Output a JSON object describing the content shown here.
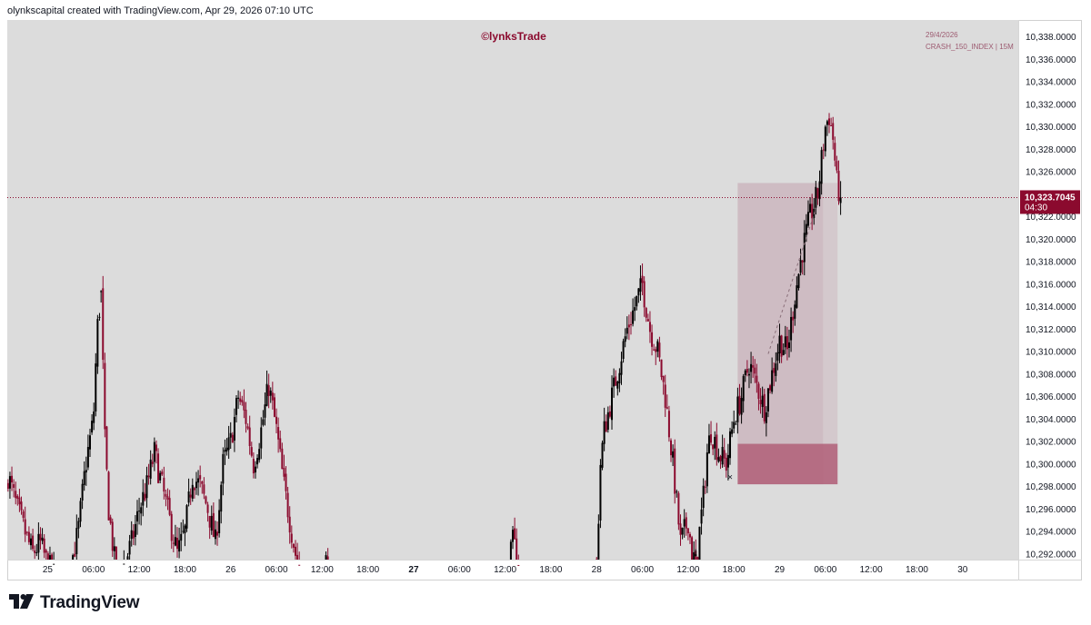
{
  "header": {
    "text": "olynkscapital created with TradingView.com, Apr 29, 2026 07:10 UTC"
  },
  "watermark": {
    "brand": "©lynksTrade",
    "date": "29/4/2026",
    "symbol": "CRASH_150_INDEX | 15M"
  },
  "price_label": {
    "price": "10,323.7045",
    "countdown": "04:30"
  },
  "footer": {
    "brand": "TradingView",
    "logo_icon": "tradingview-logo-icon"
  },
  "colors": {
    "background": "#dcdcdc",
    "bull_candle": "#000000",
    "bear_candle": "#8b0a2e",
    "accent": "#8b0a2e",
    "zone_fill": "#b3687f",
    "range_fill": "#c9b2bb"
  },
  "chart_data": {
    "type": "candlestick",
    "symbol": "CRASH_150_INDEX",
    "timeframe": "15M",
    "ylim": [
      10291.5,
      10339.5
    ],
    "yticks": [
      "10,292.0000",
      "10,294.0000",
      "10,296.0000",
      "10,298.0000",
      "10,300.0000",
      "10,302.0000",
      "10,304.0000",
      "10,306.0000",
      "10,308.0000",
      "10,310.0000",
      "10,312.0000",
      "10,314.0000",
      "10,316.0000",
      "10,318.0000",
      "10,320.0000",
      "10,322.0000",
      "10,324.0000",
      "10,326.0000",
      "10,328.0000",
      "10,330.0000",
      "10,332.0000",
      "10,334.0000",
      "10,336.0000",
      "10,338.0000"
    ],
    "xticks": [
      {
        "label": "25",
        "t": 0,
        "bold": false
      },
      {
        "label": "06:00",
        "t": 6,
        "bold": false
      },
      {
        "label": "12:00",
        "t": 12,
        "bold": false
      },
      {
        "label": "18:00",
        "t": 18,
        "bold": false
      },
      {
        "label": "26",
        "t": 24,
        "bold": false
      },
      {
        "label": "06:00",
        "t": 30,
        "bold": false
      },
      {
        "label": "12:00",
        "t": 36,
        "bold": false
      },
      {
        "label": "18:00",
        "t": 42,
        "bold": false
      },
      {
        "label": "27",
        "t": 48,
        "bold": true
      },
      {
        "label": "06:00",
        "t": 54,
        "bold": false
      },
      {
        "label": "12:00",
        "t": 60,
        "bold": false
      },
      {
        "label": "18:00",
        "t": 66,
        "bold": false
      },
      {
        "label": "28",
        "t": 72,
        "bold": false
      },
      {
        "label": "06:00",
        "t": 78,
        "bold": false
      },
      {
        "label": "12:00",
        "t": 84,
        "bold": false
      },
      {
        "label": "18:00",
        "t": 90,
        "bold": false
      },
      {
        "label": "29",
        "t": 96,
        "bold": false
      },
      {
        "label": "06:00",
        "t": 102,
        "bold": false
      },
      {
        "label": "12:00",
        "t": 108,
        "bold": false
      },
      {
        "label": "18:00",
        "t": 114,
        "bold": false
      },
      {
        "label": "30",
        "t": 120,
        "bold": false
      }
    ],
    "current_price": 10323.7045,
    "t_range": [
      -5.3,
      127.3
    ],
    "series_segments": [
      {
        "t": [
          -5.2,
          -4,
          -3,
          -2,
          -1,
          0,
          1,
          2,
          3,
          4,
          5,
          6,
          6.5,
          7
        ],
        "p": [
          10299,
          10296,
          10294,
          10292,
          10293,
          10291,
          10290,
          10289,
          10291,
          10294,
          10300,
          10304,
          10312,
          10315
        ]
      },
      {
        "t": [
          7,
          7.5,
          8,
          9,
          10,
          11,
          12,
          13,
          14,
          15,
          16,
          17,
          18,
          19,
          20,
          21,
          22,
          23,
          24,
          25,
          26,
          27,
          28,
          29,
          30,
          31,
          32,
          33
        ],
        "p": [
          10315,
          10302,
          10296,
          10290,
          10291,
          10293,
          10296,
          10298,
          10301,
          10298,
          10295,
          10292,
          10294,
          10299,
          10298,
          10296,
          10293,
          10300,
          10302,
          10306,
          10304,
          10300,
          10303,
          10307,
          10303,
          10298,
          10294,
          10290
        ]
      },
      {
        "t": [
          36,
          36.4,
          36.8
        ],
        "p": [
          10291,
          10292,
          10290
        ]
      },
      {
        "t": [
          60.5,
          61,
          61.5,
          62
        ],
        "p": [
          10291,
          10293,
          10292,
          10290
        ]
      },
      {
        "t": [
          72,
          72.5,
          73,
          74,
          75,
          76,
          77,
          78,
          78.5,
          79,
          80,
          81,
          82,
          83,
          84,
          84.5,
          85
        ],
        "p": [
          10291,
          10300,
          10303,
          10306,
          10309,
          10312,
          10314,
          10316,
          10314,
          10312,
          10310,
          10306,
          10300,
          10293,
          10295,
          10292,
          10291
        ]
      },
      {
        "t": [
          85,
          86,
          86.5,
          87,
          88,
          89,
          89.5,
          90,
          91,
          92,
          93,
          94,
          95,
          96,
          97,
          98,
          99,
          100,
          101,
          102,
          102.5,
          103,
          103.5,
          104
        ],
        "p": [
          10291,
          10297,
          10301,
          10303,
          10301,
          10300,
          10302,
          10304,
          10306,
          10309,
          10307,
          10305,
          10308,
          10311,
          10310,
          10315,
          10319,
          10322,
          10324,
          10330,
          10331,
          10329,
          10325,
          10323.7
        ]
      }
    ],
    "annotations": {
      "range_box": {
        "t": [
          90.5,
          101.7
        ],
        "p": [
          10298.2,
          10325
        ]
      },
      "zone_box": {
        "t": [
          90.5,
          103.6
        ],
        "p": [
          10298.2,
          10301.8
        ]
      },
      "range_extension": {
        "t": [
          101.7,
          103.6
        ],
        "p": [
          10301.8,
          10325
        ]
      },
      "stop_marker": {
        "label": "×",
        "t": 89.5,
        "p": 10298.8
      },
      "trend_line": {
        "t": [
          94.5,
          100.7
        ],
        "p": [
          10309.8,
          10322.6
        ]
      }
    }
  }
}
